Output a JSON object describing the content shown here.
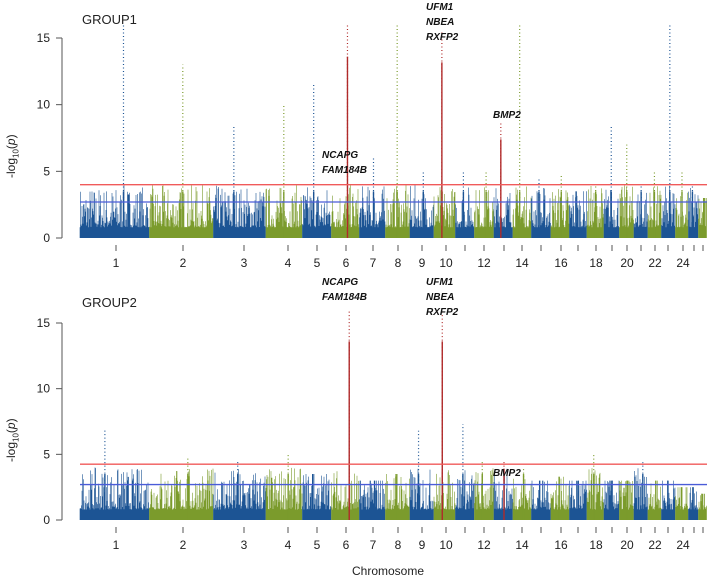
{
  "chart_data": {
    "type": "scatter",
    "subtype": "manhattan",
    "xlabel": "Chromosome",
    "ylabel": "-log10(p)",
    "chromosomes": [
      1,
      2,
      3,
      4,
      5,
      6,
      7,
      8,
      9,
      10,
      11,
      12,
      13,
      14,
      15,
      16,
      17,
      18,
      19,
      20,
      21,
      22,
      23,
      24,
      25,
      26
    ],
    "x_tick_labels": [
      "1",
      "2",
      "3",
      "4",
      "5",
      "6",
      "7",
      "8",
      "9",
      "10",
      "12",
      "14",
      "16",
      "18",
      "20",
      "22",
      "24"
    ],
    "y_ticks": [
      0,
      5,
      10,
      15
    ],
    "ylim": [
      0,
      16
    ],
    "colors": {
      "odd": "#1c5494",
      "even": "#7b9b2c",
      "highlight": "#b02a2a",
      "genomewide": "#f05a5a",
      "suggestive": "#4a5cd8"
    },
    "panels": [
      {
        "title": "GROUP1",
        "genomewide_threshold": 4.0,
        "suggestive_threshold": 2.7,
        "max_by_chromosome": [
          16,
          13,
          8.5,
          10,
          11.5,
          16,
          6,
          16,
          5,
          15.5,
          5,
          5,
          8.7,
          16,
          4.5,
          4.7,
          3.5,
          4,
          8.5,
          7,
          4,
          5,
          16,
          5,
          4,
          3
        ],
        "highlighted_chromosomes": [
          6,
          10,
          13
        ],
        "annotations": [
          {
            "chromosome": 6,
            "genes": [
              "NCAPG",
              "FAM184B"
            ]
          },
          {
            "chromosome": 10,
            "genes": [
              "UFM1",
              "NBEA",
              "RXFP2"
            ]
          },
          {
            "chromosome": 13,
            "genes": [
              "BMP2"
            ]
          }
        ]
      },
      {
        "title": "GROUP2",
        "genomewide_threshold": 4.25,
        "suggestive_threshold": 2.7,
        "max_by_chromosome": [
          7,
          4.8,
          4.5,
          5,
          3.5,
          16,
          3,
          3.5,
          6.8,
          16,
          7.3,
          4.5,
          4.6,
          4,
          3,
          3.3,
          3,
          5,
          3,
          3,
          4.4,
          3,
          3,
          2.5,
          2.5,
          2
        ],
        "highlighted_chromosomes": [
          6,
          10,
          13
        ],
        "annotations": [
          {
            "chromosome": 6,
            "genes": [
              "NCAPG",
              "FAM184B"
            ]
          },
          {
            "chromosome": 10,
            "genes": [
              "UFM1",
              "NBEA",
              "RXFP2"
            ]
          },
          {
            "chromosome": 13,
            "genes": [
              "BMP2"
            ]
          }
        ]
      }
    ]
  }
}
